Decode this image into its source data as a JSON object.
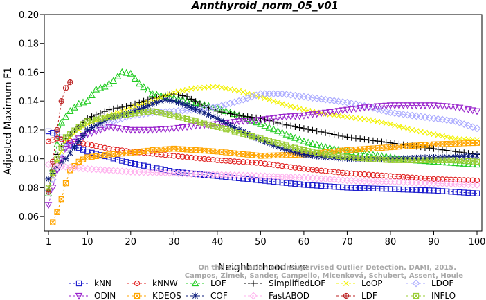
{
  "chart_data": {
    "type": "line",
    "title": "Annthyroid_norm_05_v01",
    "xlabel": "Neighborhood size",
    "ylabel": "Adjusted Maximum F1",
    "xlim": [
      1,
      100
    ],
    "ylim": [
      0.05,
      0.2
    ],
    "xticks": [
      1,
      10,
      20,
      30,
      40,
      50,
      60,
      70,
      80,
      90,
      100
    ],
    "yticks": [
      0.06,
      0.08,
      0.1,
      0.12,
      0.14,
      0.16,
      0.18,
      0.2
    ],
    "ytick_labels": [
      "0.06",
      "0.08",
      "0.10",
      "0.12",
      "0.14",
      "0.16",
      "0.18",
      "0.20"
    ],
    "grid": false,
    "legend_position": "bottom",
    "credit_lines": [
      "Campos, Zimek, Sander, Campello, Micenková, Schubert, Assent, Houle",
      "On the Evaluation of Unsupervised Outlier Detection. DAMI, 2015."
    ],
    "series": [
      {
        "name": "kNN",
        "color": "#1a1acc",
        "marker": "square",
        "x_range": [
          1,
          100
        ],
        "points": [
          [
            1,
            0.119
          ],
          [
            3,
            0.117
          ],
          [
            6,
            0.11
          ],
          [
            10,
            0.105
          ],
          [
            15,
            0.101
          ],
          [
            20,
            0.097
          ],
          [
            30,
            0.091
          ],
          [
            40,
            0.088
          ],
          [
            50,
            0.085
          ],
          [
            60,
            0.082
          ],
          [
            70,
            0.08
          ],
          [
            80,
            0.079
          ],
          [
            90,
            0.078
          ],
          [
            100,
            0.076
          ]
        ]
      },
      {
        "name": "kNNW",
        "color": "#e02020",
        "marker": "circle",
        "x_range": [
          1,
          100
        ],
        "points": [
          [
            1,
            0.112
          ],
          [
            3,
            0.114
          ],
          [
            5,
            0.113
          ],
          [
            10,
            0.11
          ],
          [
            15,
            0.107
          ],
          [
            20,
            0.105
          ],
          [
            30,
            0.102
          ],
          [
            40,
            0.099
          ],
          [
            50,
            0.097
          ],
          [
            60,
            0.093
          ],
          [
            70,
            0.09
          ],
          [
            80,
            0.088
          ],
          [
            90,
            0.086
          ],
          [
            100,
            0.085
          ]
        ]
      },
      {
        "name": "LOF",
        "color": "#22cc22",
        "marker": "triangle-up",
        "x_range": [
          1,
          100
        ],
        "points": [
          [
            1,
            0.076
          ],
          [
            2,
            0.093
          ],
          [
            3,
            0.11
          ],
          [
            4,
            0.125
          ],
          [
            6,
            0.133
          ],
          [
            8,
            0.138
          ],
          [
            10,
            0.14
          ],
          [
            12,
            0.148
          ],
          [
            14,
            0.15
          ],
          [
            16,
            0.154
          ],
          [
            18,
            0.16
          ],
          [
            20,
            0.159
          ],
          [
            22,
            0.152
          ],
          [
            25,
            0.145
          ],
          [
            28,
            0.143
          ],
          [
            32,
            0.141
          ],
          [
            36,
            0.138
          ],
          [
            40,
            0.135
          ],
          [
            45,
            0.13
          ],
          [
            50,
            0.124
          ],
          [
            55,
            0.118
          ],
          [
            60,
            0.112
          ],
          [
            65,
            0.108
          ],
          [
            70,
            0.105
          ],
          [
            75,
            0.103
          ],
          [
            80,
            0.101
          ],
          [
            85,
            0.099
          ],
          [
            90,
            0.098
          ],
          [
            95,
            0.097
          ],
          [
            100,
            0.096
          ]
        ]
      },
      {
        "name": "SimplifiedLOF",
        "color": "#000000",
        "marker": "plus",
        "x_range": [
          1,
          100
        ],
        "points": [
          [
            1,
            0.078
          ],
          [
            2,
            0.092
          ],
          [
            3,
            0.103
          ],
          [
            5,
            0.114
          ],
          [
            8,
            0.122
          ],
          [
            10,
            0.128
          ],
          [
            15,
            0.134
          ],
          [
            20,
            0.137
          ],
          [
            25,
            0.142
          ],
          [
            30,
            0.145
          ],
          [
            33,
            0.143
          ],
          [
            36,
            0.138
          ],
          [
            40,
            0.133
          ],
          [
            45,
            0.13
          ],
          [
            50,
            0.128
          ],
          [
            55,
            0.124
          ],
          [
            60,
            0.121
          ],
          [
            65,
            0.118
          ],
          [
            70,
            0.115
          ],
          [
            80,
            0.111
          ],
          [
            90,
            0.107
          ],
          [
            100,
            0.103
          ]
        ]
      },
      {
        "name": "LoOP",
        "color": "#f2f200",
        "marker": "cross",
        "x_range": [
          1,
          100
        ],
        "points": [
          [
            1,
            0.078
          ],
          [
            3,
            0.098
          ],
          [
            5,
            0.112
          ],
          [
            8,
            0.12
          ],
          [
            10,
            0.124
          ],
          [
            15,
            0.13
          ],
          [
            20,
            0.135
          ],
          [
            25,
            0.14
          ],
          [
            30,
            0.146
          ],
          [
            35,
            0.149
          ],
          [
            40,
            0.15
          ],
          [
            45,
            0.147
          ],
          [
            50,
            0.143
          ],
          [
            55,
            0.138
          ],
          [
            60,
            0.134
          ],
          [
            65,
            0.131
          ],
          [
            70,
            0.129
          ],
          [
            75,
            0.127
          ],
          [
            80,
            0.124
          ],
          [
            85,
            0.12
          ],
          [
            90,
            0.117
          ],
          [
            95,
            0.114
          ],
          [
            100,
            0.113
          ]
        ]
      },
      {
        "name": "LDOF",
        "color": "#aaaaff",
        "marker": "diamond",
        "x_range": [
          1,
          100
        ],
        "points": [
          [
            1,
            0.078
          ],
          [
            5,
            0.108
          ],
          [
            10,
            0.118
          ],
          [
            15,
            0.125
          ],
          [
            20,
            0.13
          ],
          [
            25,
            0.132
          ],
          [
            30,
            0.133
          ],
          [
            35,
            0.134
          ],
          [
            40,
            0.136
          ],
          [
            45,
            0.14
          ],
          [
            50,
            0.145
          ],
          [
            55,
            0.145
          ],
          [
            60,
            0.143
          ],
          [
            65,
            0.141
          ],
          [
            70,
            0.139
          ],
          [
            75,
            0.136
          ],
          [
            80,
            0.132
          ],
          [
            85,
            0.13
          ],
          [
            90,
            0.128
          ],
          [
            95,
            0.126
          ],
          [
            100,
            0.121
          ]
        ]
      },
      {
        "name": "ODIN",
        "color": "#9922cc",
        "marker": "triangle-down",
        "x_range": [
          1,
          100
        ],
        "points": [
          [
            1,
            0.068
          ],
          [
            2,
            0.08
          ],
          [
            3,
            0.092
          ],
          [
            5,
            0.107
          ],
          [
            8,
            0.114
          ],
          [
            10,
            0.117
          ],
          [
            15,
            0.122
          ],
          [
            20,
            0.12
          ],
          [
            25,
            0.12
          ],
          [
            30,
            0.121
          ],
          [
            35,
            0.123
          ],
          [
            40,
            0.124
          ],
          [
            45,
            0.126
          ],
          [
            50,
            0.127
          ],
          [
            55,
            0.129
          ],
          [
            60,
            0.13
          ],
          [
            65,
            0.132
          ],
          [
            70,
            0.134
          ],
          [
            75,
            0.136
          ],
          [
            80,
            0.137
          ],
          [
            85,
            0.137
          ],
          [
            90,
            0.137
          ],
          [
            95,
            0.136
          ],
          [
            100,
            0.133
          ]
        ]
      },
      {
        "name": "KDEOS",
        "color": "#ffa500",
        "marker": "square-x",
        "x_range": [
          2,
          100
        ],
        "points": [
          [
            2,
            0.056
          ],
          [
            3,
            0.063
          ],
          [
            4,
            0.072
          ],
          [
            5,
            0.083
          ],
          [
            6,
            0.092
          ],
          [
            8,
            0.098
          ],
          [
            10,
            0.101
          ],
          [
            15,
            0.103
          ],
          [
            20,
            0.104
          ],
          [
            25,
            0.106
          ],
          [
            30,
            0.107
          ],
          [
            40,
            0.105
          ],
          [
            50,
            0.102
          ],
          [
            60,
            0.103
          ],
          [
            70,
            0.106
          ],
          [
            80,
            0.108
          ],
          [
            90,
            0.11
          ],
          [
            100,
            0.111
          ]
        ]
      },
      {
        "name": "COF",
        "color": "#0a1a7a",
        "marker": "asterisk",
        "x_range": [
          1,
          100
        ],
        "points": [
          [
            1,
            0.086
          ],
          [
            3,
            0.094
          ],
          [
            5,
            0.1
          ],
          [
            8,
            0.112
          ],
          [
            10,
            0.12
          ],
          [
            15,
            0.128
          ],
          [
            20,
            0.132
          ],
          [
            25,
            0.138
          ],
          [
            28,
            0.141
          ],
          [
            30,
            0.14
          ],
          [
            33,
            0.137
          ],
          [
            36,
            0.133
          ],
          [
            40,
            0.128
          ],
          [
            45,
            0.12
          ],
          [
            50,
            0.113
          ],
          [
            55,
            0.107
          ],
          [
            60,
            0.103
          ],
          [
            65,
            0.101
          ],
          [
            70,
            0.1
          ],
          [
            80,
            0.1
          ],
          [
            90,
            0.101
          ],
          [
            100,
            0.102
          ]
        ]
      },
      {
        "name": "FastABOD",
        "color": "#ffb0ee",
        "marker": "diamond",
        "x_range": [
          1,
          100
        ],
        "points": [
          [
            1,
            0.096
          ],
          [
            3,
            0.095
          ],
          [
            6,
            0.094
          ],
          [
            10,
            0.093
          ],
          [
            15,
            0.092
          ],
          [
            20,
            0.091
          ],
          [
            30,
            0.09
          ],
          [
            40,
            0.089
          ],
          [
            50,
            0.088
          ],
          [
            60,
            0.087
          ],
          [
            70,
            0.085
          ],
          [
            80,
            0.084
          ],
          [
            90,
            0.083
          ],
          [
            100,
            0.082
          ]
        ]
      },
      {
        "name": "LDF",
        "color": "#bb2222",
        "marker": "circle-plus",
        "x_range": [
          1,
          6
        ],
        "points": [
          [
            1,
            0.077
          ],
          [
            2,
            0.098
          ],
          [
            3,
            0.12
          ],
          [
            4,
            0.14
          ],
          [
            5,
            0.149
          ],
          [
            6,
            0.153
          ]
        ]
      },
      {
        "name": "INFLO",
        "color": "#99cc33",
        "marker": "square-x",
        "x_range": [
          1,
          100
        ],
        "points": [
          [
            1,
            0.08
          ],
          [
            3,
            0.1
          ],
          [
            5,
            0.115
          ],
          [
            8,
            0.122
          ],
          [
            10,
            0.126
          ],
          [
            15,
            0.129
          ],
          [
            20,
            0.131
          ],
          [
            25,
            0.133
          ],
          [
            30,
            0.13
          ],
          [
            35,
            0.126
          ],
          [
            40,
            0.122
          ],
          [
            45,
            0.118
          ],
          [
            50,
            0.114
          ],
          [
            55,
            0.11
          ],
          [
            60,
            0.106
          ],
          [
            65,
            0.103
          ],
          [
            70,
            0.101
          ],
          [
            75,
            0.1
          ],
          [
            80,
            0.099
          ],
          [
            85,
            0.099
          ],
          [
            90,
            0.099
          ],
          [
            95,
            0.099
          ],
          [
            100,
            0.098
          ]
        ]
      }
    ]
  }
}
